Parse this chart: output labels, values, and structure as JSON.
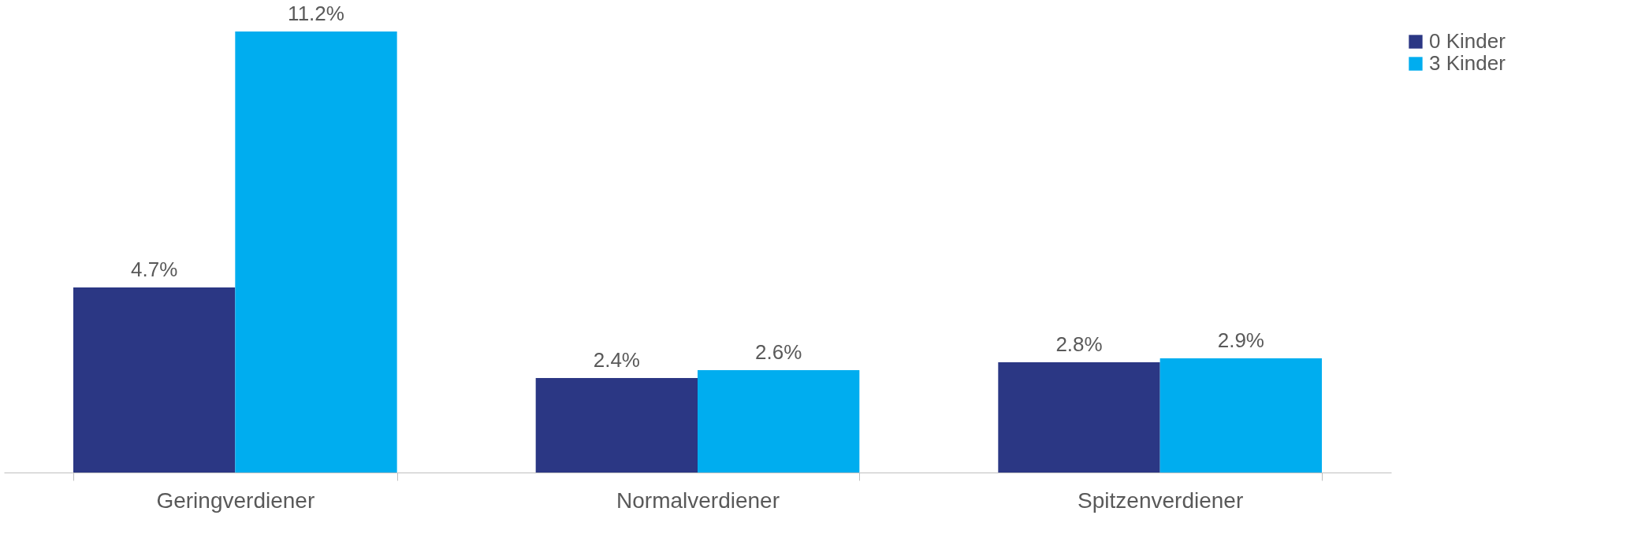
{
  "chart_data": {
    "type": "bar",
    "categories": [
      "Geringverdiener",
      "Normalverdiener",
      "Spitzenverdiener"
    ],
    "series": [
      {
        "name": "0 Kinder",
        "color": "#2b3784",
        "values": [
          4.7,
          2.4,
          2.8
        ],
        "value_labels": [
          "4.7%",
          "2.4%",
          "2.8%"
        ]
      },
      {
        "name": "3 Kinder",
        "color": "#00adef",
        "values": [
          11.2,
          2.6,
          2.9
        ],
        "value_labels": [
          "11.2%",
          "2.6%",
          "2.9%"
        ]
      }
    ],
    "legend": "right",
    "grid": false
  }
}
